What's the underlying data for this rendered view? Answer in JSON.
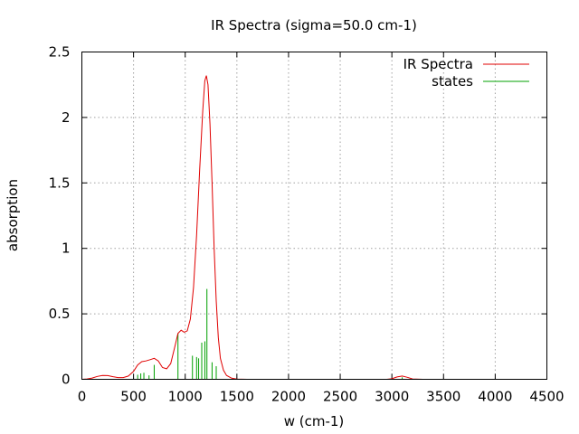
{
  "chart_data": {
    "type": "line",
    "title": "IR Spectra (sigma=50.0 cm-1)",
    "xlabel": "w (cm-1)",
    "ylabel": "absorption",
    "xlim": [
      0,
      4500
    ],
    "ylim": [
      0,
      2.5
    ],
    "x_ticks": [
      "0",
      "500",
      "1000",
      "1500",
      "2000",
      "2500",
      "3000",
      "3500",
      "4000",
      "4500"
    ],
    "y_ticks": [
      "0",
      "0.5",
      "1",
      "1.5",
      "2",
      "2.5"
    ],
    "grid": true,
    "legend_position": "top-right",
    "series": [
      {
        "name": "IR Spectra",
        "color": "#e00000",
        "style": "line",
        "points": [
          [
            0,
            0
          ],
          [
            50,
            0.003
          ],
          [
            100,
            0.01
          ],
          [
            150,
            0.022
          ],
          [
            200,
            0.03
          ],
          [
            250,
            0.028
          ],
          [
            300,
            0.02
          ],
          [
            350,
            0.013
          ],
          [
            400,
            0.013
          ],
          [
            450,
            0.025
          ],
          [
            500,
            0.06
          ],
          [
            540,
            0.11
          ],
          [
            580,
            0.135
          ],
          [
            620,
            0.14
          ],
          [
            660,
            0.15
          ],
          [
            700,
            0.16
          ],
          [
            740,
            0.14
          ],
          [
            780,
            0.09
          ],
          [
            820,
            0.08
          ],
          [
            860,
            0.12
          ],
          [
            900,
            0.25
          ],
          [
            930,
            0.35
          ],
          [
            960,
            0.375
          ],
          [
            990,
            0.36
          ],
          [
            1020,
            0.37
          ],
          [
            1050,
            0.46
          ],
          [
            1080,
            0.7
          ],
          [
            1110,
            1.1
          ],
          [
            1140,
            1.6
          ],
          [
            1170,
            2.05
          ],
          [
            1190,
            2.28
          ],
          [
            1205,
            2.32
          ],
          [
            1220,
            2.25
          ],
          [
            1240,
            1.95
          ],
          [
            1260,
            1.5
          ],
          [
            1280,
            1.0
          ],
          [
            1300,
            0.6
          ],
          [
            1320,
            0.32
          ],
          [
            1340,
            0.16
          ],
          [
            1370,
            0.07
          ],
          [
            1400,
            0.03
          ],
          [
            1450,
            0.008
          ],
          [
            1500,
            0.002
          ],
          [
            1600,
            0
          ],
          [
            2950,
            0
          ],
          [
            3000,
            0.004
          ],
          [
            3050,
            0.018
          ],
          [
            3100,
            0.025
          ],
          [
            3150,
            0.015
          ],
          [
            3200,
            0.003
          ],
          [
            3300,
            0
          ],
          [
            4500,
            0
          ]
        ]
      },
      {
        "name": "states",
        "color": "#00a000",
        "style": "impulses",
        "points": [
          [
            540,
            0.035
          ],
          [
            570,
            0.045
          ],
          [
            600,
            0.05
          ],
          [
            650,
            0.03
          ],
          [
            700,
            0.11
          ],
          [
            930,
            0.35
          ],
          [
            1070,
            0.18
          ],
          [
            1110,
            0.17
          ],
          [
            1130,
            0.16
          ],
          [
            1160,
            0.28
          ],
          [
            1190,
            0.29
          ],
          [
            1210,
            0.69
          ],
          [
            1260,
            0.13
          ],
          [
            1300,
            0.1
          ],
          [
            3100,
            0.015
          ]
        ]
      }
    ]
  }
}
